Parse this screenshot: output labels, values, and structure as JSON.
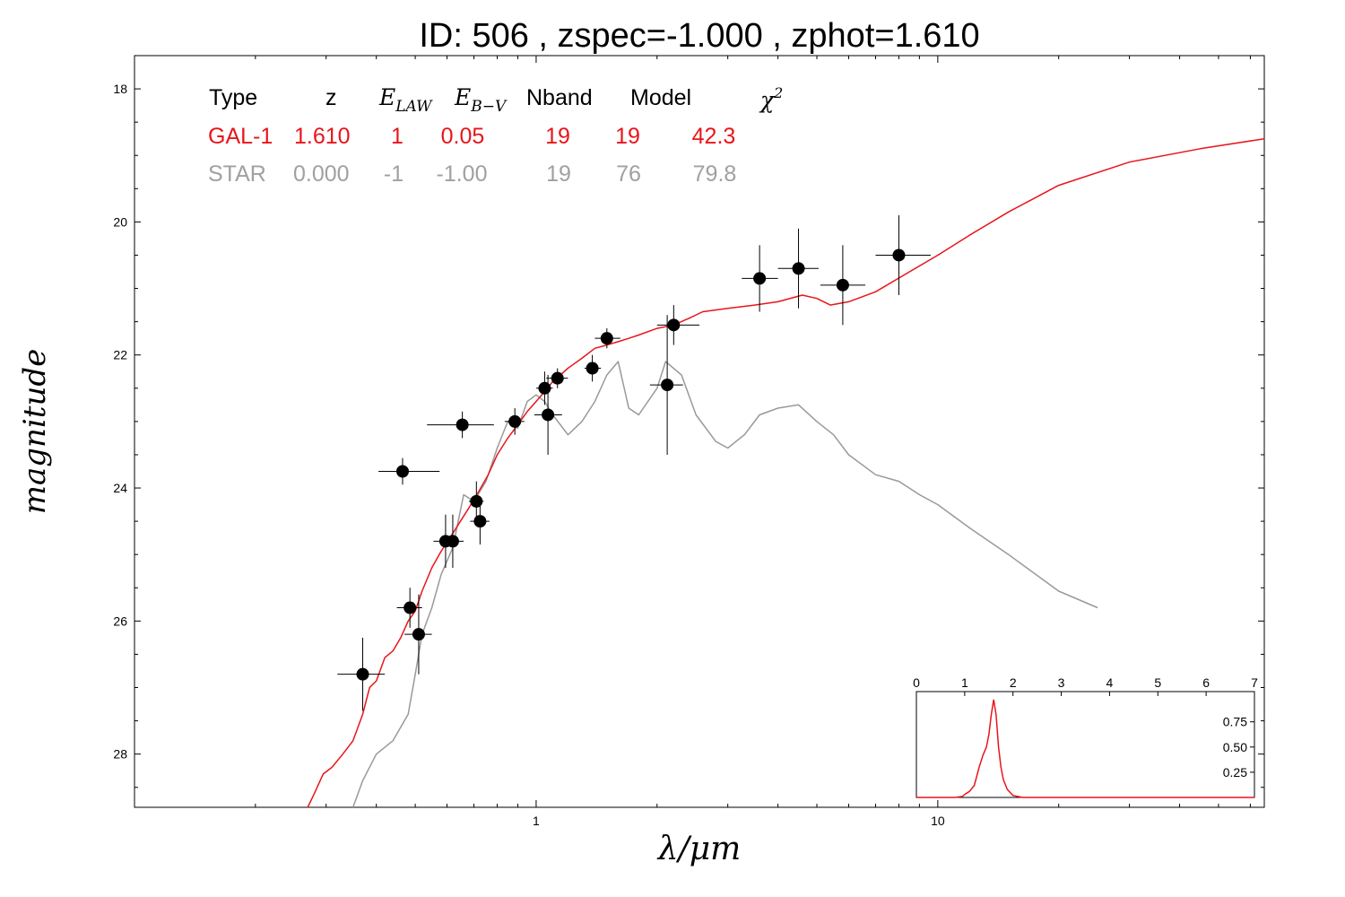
{
  "chart_data": [
    {
      "type": "scatter",
      "title": "ID:  506   , zspec=-1.000 , zphot=1.610",
      "xlabel": "λ/μm",
      "ylabel": "magnitude",
      "xscale": "log",
      "xlim": [
        0.1,
        65
      ],
      "ylim": [
        28.8,
        17.5
      ],
      "y_inverted": true,
      "grid": false,
      "xticks": [
        {
          "v": 1,
          "label": "1"
        },
        {
          "v": 10,
          "label": "10"
        }
      ],
      "yticks": [
        {
          "v": 18,
          "label": "18"
        },
        {
          "v": 20,
          "label": "20"
        },
        {
          "v": 22,
          "label": "22"
        },
        {
          "v": 24,
          "label": "24"
        },
        {
          "v": 26,
          "label": "26"
        },
        {
          "v": 28,
          "label": "28"
        }
      ],
      "fit_table": {
        "headers": [
          "Type",
          "z",
          "E_LAW",
          "E_B−V",
          "Nband",
          "Model",
          "χ²"
        ],
        "rows": [
          {
            "type": "GAL-1",
            "z": "1.610",
            "elaw": "1",
            "ebv": "0.05",
            "nband": "19",
            "model": "19",
            "chi2": "42.3",
            "color": "#e8151b"
          },
          {
            "type": "STAR",
            "z": "0.000",
            "elaw": "-1",
            "ebv": "-1.00",
            "nband": "19",
            "model": "76",
            "chi2": "79.8",
            "color": "#a0a0a0"
          }
        ]
      },
      "photometry": [
        {
          "x": 0.37,
          "y": 26.8,
          "xerr_lo": 0.05,
          "xerr_hi": 0.05,
          "yerr": 0.55
        },
        {
          "x": 0.465,
          "y": 23.75,
          "xerr_lo": 0.06,
          "xerr_hi": 0.11,
          "yerr": 0.2
        },
        {
          "x": 0.485,
          "y": 25.8,
          "xerr_lo": 0.035,
          "xerr_hi": 0.035,
          "yerr": 0.3
        },
        {
          "x": 0.51,
          "y": 26.2,
          "xerr_lo": 0.04,
          "xerr_hi": 0.04,
          "yerr": 0.6
        },
        {
          "x": 0.595,
          "y": 24.8,
          "xerr_lo": 0.04,
          "xerr_hi": 0.04,
          "yerr": 0.4
        },
        {
          "x": 0.62,
          "y": 24.8,
          "xerr_lo": 0.04,
          "xerr_hi": 0.04,
          "yerr": 0.4
        },
        {
          "x": 0.655,
          "y": 23.05,
          "xerr_lo": 0.12,
          "xerr_hi": 0.13,
          "yerr": 0.2
        },
        {
          "x": 0.71,
          "y": 24.2,
          "xerr_lo": 0.03,
          "xerr_hi": 0.03,
          "yerr": 0.3
        },
        {
          "x": 0.725,
          "y": 24.5,
          "xerr_lo": 0.04,
          "xerr_hi": 0.04,
          "yerr": 0.35
        },
        {
          "x": 0.885,
          "y": 23.0,
          "xerr_lo": 0.05,
          "xerr_hi": 0.05,
          "yerr": 0.2
        },
        {
          "x": 1.05,
          "y": 22.5,
          "xerr_lo": 0.05,
          "xerr_hi": 0.05,
          "yerr": 0.25
        },
        {
          "x": 1.07,
          "y": 22.9,
          "xerr_lo": 0.08,
          "xerr_hi": 0.09,
          "yerr": 0.6
        },
        {
          "x": 1.13,
          "y": 22.35,
          "xerr_lo": 0.07,
          "xerr_hi": 0.07,
          "yerr": 0.15
        },
        {
          "x": 1.38,
          "y": 22.2,
          "xerr_lo": 0.06,
          "xerr_hi": 0.07,
          "yerr": 0.2
        },
        {
          "x": 1.5,
          "y": 21.75,
          "xerr_lo": 0.1,
          "xerr_hi": 0.12,
          "yerr": 0.15
        },
        {
          "x": 2.12,
          "y": 22.45,
          "xerr_lo": 0.2,
          "xerr_hi": 0.2,
          "yerr": 1.05
        },
        {
          "x": 2.2,
          "y": 21.55,
          "xerr_lo": 0.2,
          "xerr_hi": 0.35,
          "yerr": 0.3
        },
        {
          "x": 3.6,
          "y": 20.85,
          "xerr_lo": 0.35,
          "xerr_hi": 0.4,
          "yerr": 0.5
        },
        {
          "x": 4.5,
          "y": 20.7,
          "xerr_lo": 0.5,
          "xerr_hi": 0.55,
          "yerr": 0.6
        },
        {
          "x": 5.8,
          "y": 20.95,
          "xerr_lo": 0.7,
          "xerr_hi": 0.8,
          "yerr": 0.6
        },
        {
          "x": 8.0,
          "y": 20.5,
          "xerr_lo": 1.0,
          "xerr_hi": 1.6,
          "yerr": 0.6
        }
      ],
      "galaxy_model": {
        "color": "#e8151b",
        "points": [
          [
            0.27,
            28.8
          ],
          [
            0.28,
            28.6
          ],
          [
            0.295,
            28.3
          ],
          [
            0.31,
            28.2
          ],
          [
            0.33,
            28.0
          ],
          [
            0.35,
            27.8
          ],
          [
            0.37,
            27.4
          ],
          [
            0.385,
            27.0
          ],
          [
            0.4,
            26.9
          ],
          [
            0.42,
            26.55
          ],
          [
            0.44,
            26.45
          ],
          [
            0.46,
            26.25
          ],
          [
            0.48,
            26.0
          ],
          [
            0.5,
            25.85
          ],
          [
            0.52,
            25.55
          ],
          [
            0.55,
            25.2
          ],
          [
            0.58,
            24.95
          ],
          [
            0.61,
            24.75
          ],
          [
            0.64,
            24.55
          ],
          [
            0.68,
            24.3
          ],
          [
            0.72,
            24.05
          ],
          [
            0.76,
            23.8
          ],
          [
            0.8,
            23.5
          ],
          [
            0.85,
            23.25
          ],
          [
            0.9,
            23.05
          ],
          [
            0.95,
            22.85
          ],
          [
            1.0,
            22.7
          ],
          [
            1.05,
            22.55
          ],
          [
            1.1,
            22.4
          ],
          [
            1.2,
            22.2
          ],
          [
            1.3,
            22.05
          ],
          [
            1.4,
            21.9
          ],
          [
            1.5,
            21.85
          ],
          [
            1.6,
            21.8
          ],
          [
            1.7,
            21.75
          ],
          [
            1.8,
            21.7
          ],
          [
            2.0,
            21.6
          ],
          [
            2.2,
            21.55
          ],
          [
            2.4,
            21.45
          ],
          [
            2.6,
            21.35
          ],
          [
            3.0,
            21.3
          ],
          [
            3.5,
            21.25
          ],
          [
            4.0,
            21.2
          ],
          [
            4.6,
            21.1
          ],
          [
            5.0,
            21.15
          ],
          [
            5.4,
            21.25
          ],
          [
            6.0,
            21.2
          ],
          [
            7.0,
            21.05
          ],
          [
            8.5,
            20.75
          ],
          [
            10.0,
            20.5
          ],
          [
            12.0,
            20.2
          ],
          [
            15.0,
            19.85
          ],
          [
            20.0,
            19.45
          ],
          [
            30.0,
            19.1
          ],
          [
            45.0,
            18.9
          ],
          [
            65.0,
            18.75
          ]
        ]
      },
      "star_model": {
        "color": "#999999",
        "points": [
          [
            0.35,
            28.8
          ],
          [
            0.37,
            28.4
          ],
          [
            0.4,
            28.0
          ],
          [
            0.44,
            27.8
          ],
          [
            0.48,
            27.4
          ],
          [
            0.5,
            26.8
          ],
          [
            0.52,
            26.2
          ],
          [
            0.55,
            25.8
          ],
          [
            0.58,
            25.3
          ],
          [
            0.62,
            24.9
          ],
          [
            0.66,
            24.1
          ],
          [
            0.7,
            24.2
          ],
          [
            0.75,
            23.9
          ],
          [
            0.8,
            23.4
          ],
          [
            0.85,
            23.0
          ],
          [
            0.9,
            23.1
          ],
          [
            0.95,
            22.7
          ],
          [
            1.0,
            22.6
          ],
          [
            1.05,
            22.7
          ],
          [
            1.1,
            22.9
          ],
          [
            1.2,
            23.2
          ],
          [
            1.3,
            23.0
          ],
          [
            1.4,
            22.7
          ],
          [
            1.5,
            22.3
          ],
          [
            1.6,
            22.1
          ],
          [
            1.7,
            22.8
          ],
          [
            1.8,
            22.9
          ],
          [
            2.0,
            22.5
          ],
          [
            2.1,
            22.1
          ],
          [
            2.3,
            22.3
          ],
          [
            2.5,
            22.9
          ],
          [
            2.8,
            23.3
          ],
          [
            3.0,
            23.4
          ],
          [
            3.3,
            23.2
          ],
          [
            3.6,
            22.9
          ],
          [
            4.0,
            22.8
          ],
          [
            4.5,
            22.75
          ],
          [
            5.0,
            23.0
          ],
          [
            5.5,
            23.2
          ],
          [
            6.0,
            23.5
          ],
          [
            7.0,
            23.8
          ],
          [
            8.0,
            23.9
          ],
          [
            9.0,
            24.1
          ],
          [
            10.0,
            24.25
          ],
          [
            12.0,
            24.6
          ],
          [
            15.0,
            25.0
          ],
          [
            20.0,
            25.55
          ],
          [
            25.0,
            25.8
          ]
        ]
      }
    },
    {
      "type": "line",
      "title": "",
      "xlabel": "",
      "ylabel": "",
      "xlim": [
        0,
        7
      ],
      "ylim": [
        0,
        1.05
      ],
      "xticks": [
        {
          "v": 0,
          "label": "0"
        },
        {
          "v": 1,
          "label": "1"
        },
        {
          "v": 2,
          "label": "2"
        },
        {
          "v": 3,
          "label": "3"
        },
        {
          "v": 4,
          "label": "4"
        },
        {
          "v": 5,
          "label": "5"
        },
        {
          "v": 6,
          "label": "6"
        },
        {
          "v": 7,
          "label": "7"
        }
      ],
      "yticks": [
        {
          "v": 0.25,
          "label": "0.25"
        },
        {
          "v": 0.5,
          "label": "0.50"
        },
        {
          "v": 0.75,
          "label": "0.75"
        }
      ],
      "series": [
        {
          "color": "#e8151b",
          "x": [
            0.0,
            0.8,
            0.95,
            1.0,
            1.1,
            1.2,
            1.3,
            1.38,
            1.45,
            1.5,
            1.55,
            1.6,
            1.65,
            1.7,
            1.75,
            1.8,
            1.88,
            2.0,
            2.2,
            7.0
          ],
          "y": [
            0.0,
            0.0,
            0.01,
            0.03,
            0.06,
            0.12,
            0.3,
            0.42,
            0.5,
            0.62,
            0.82,
            0.97,
            0.82,
            0.5,
            0.3,
            0.18,
            0.08,
            0.02,
            0.0,
            0.0
          ]
        }
      ]
    }
  ]
}
